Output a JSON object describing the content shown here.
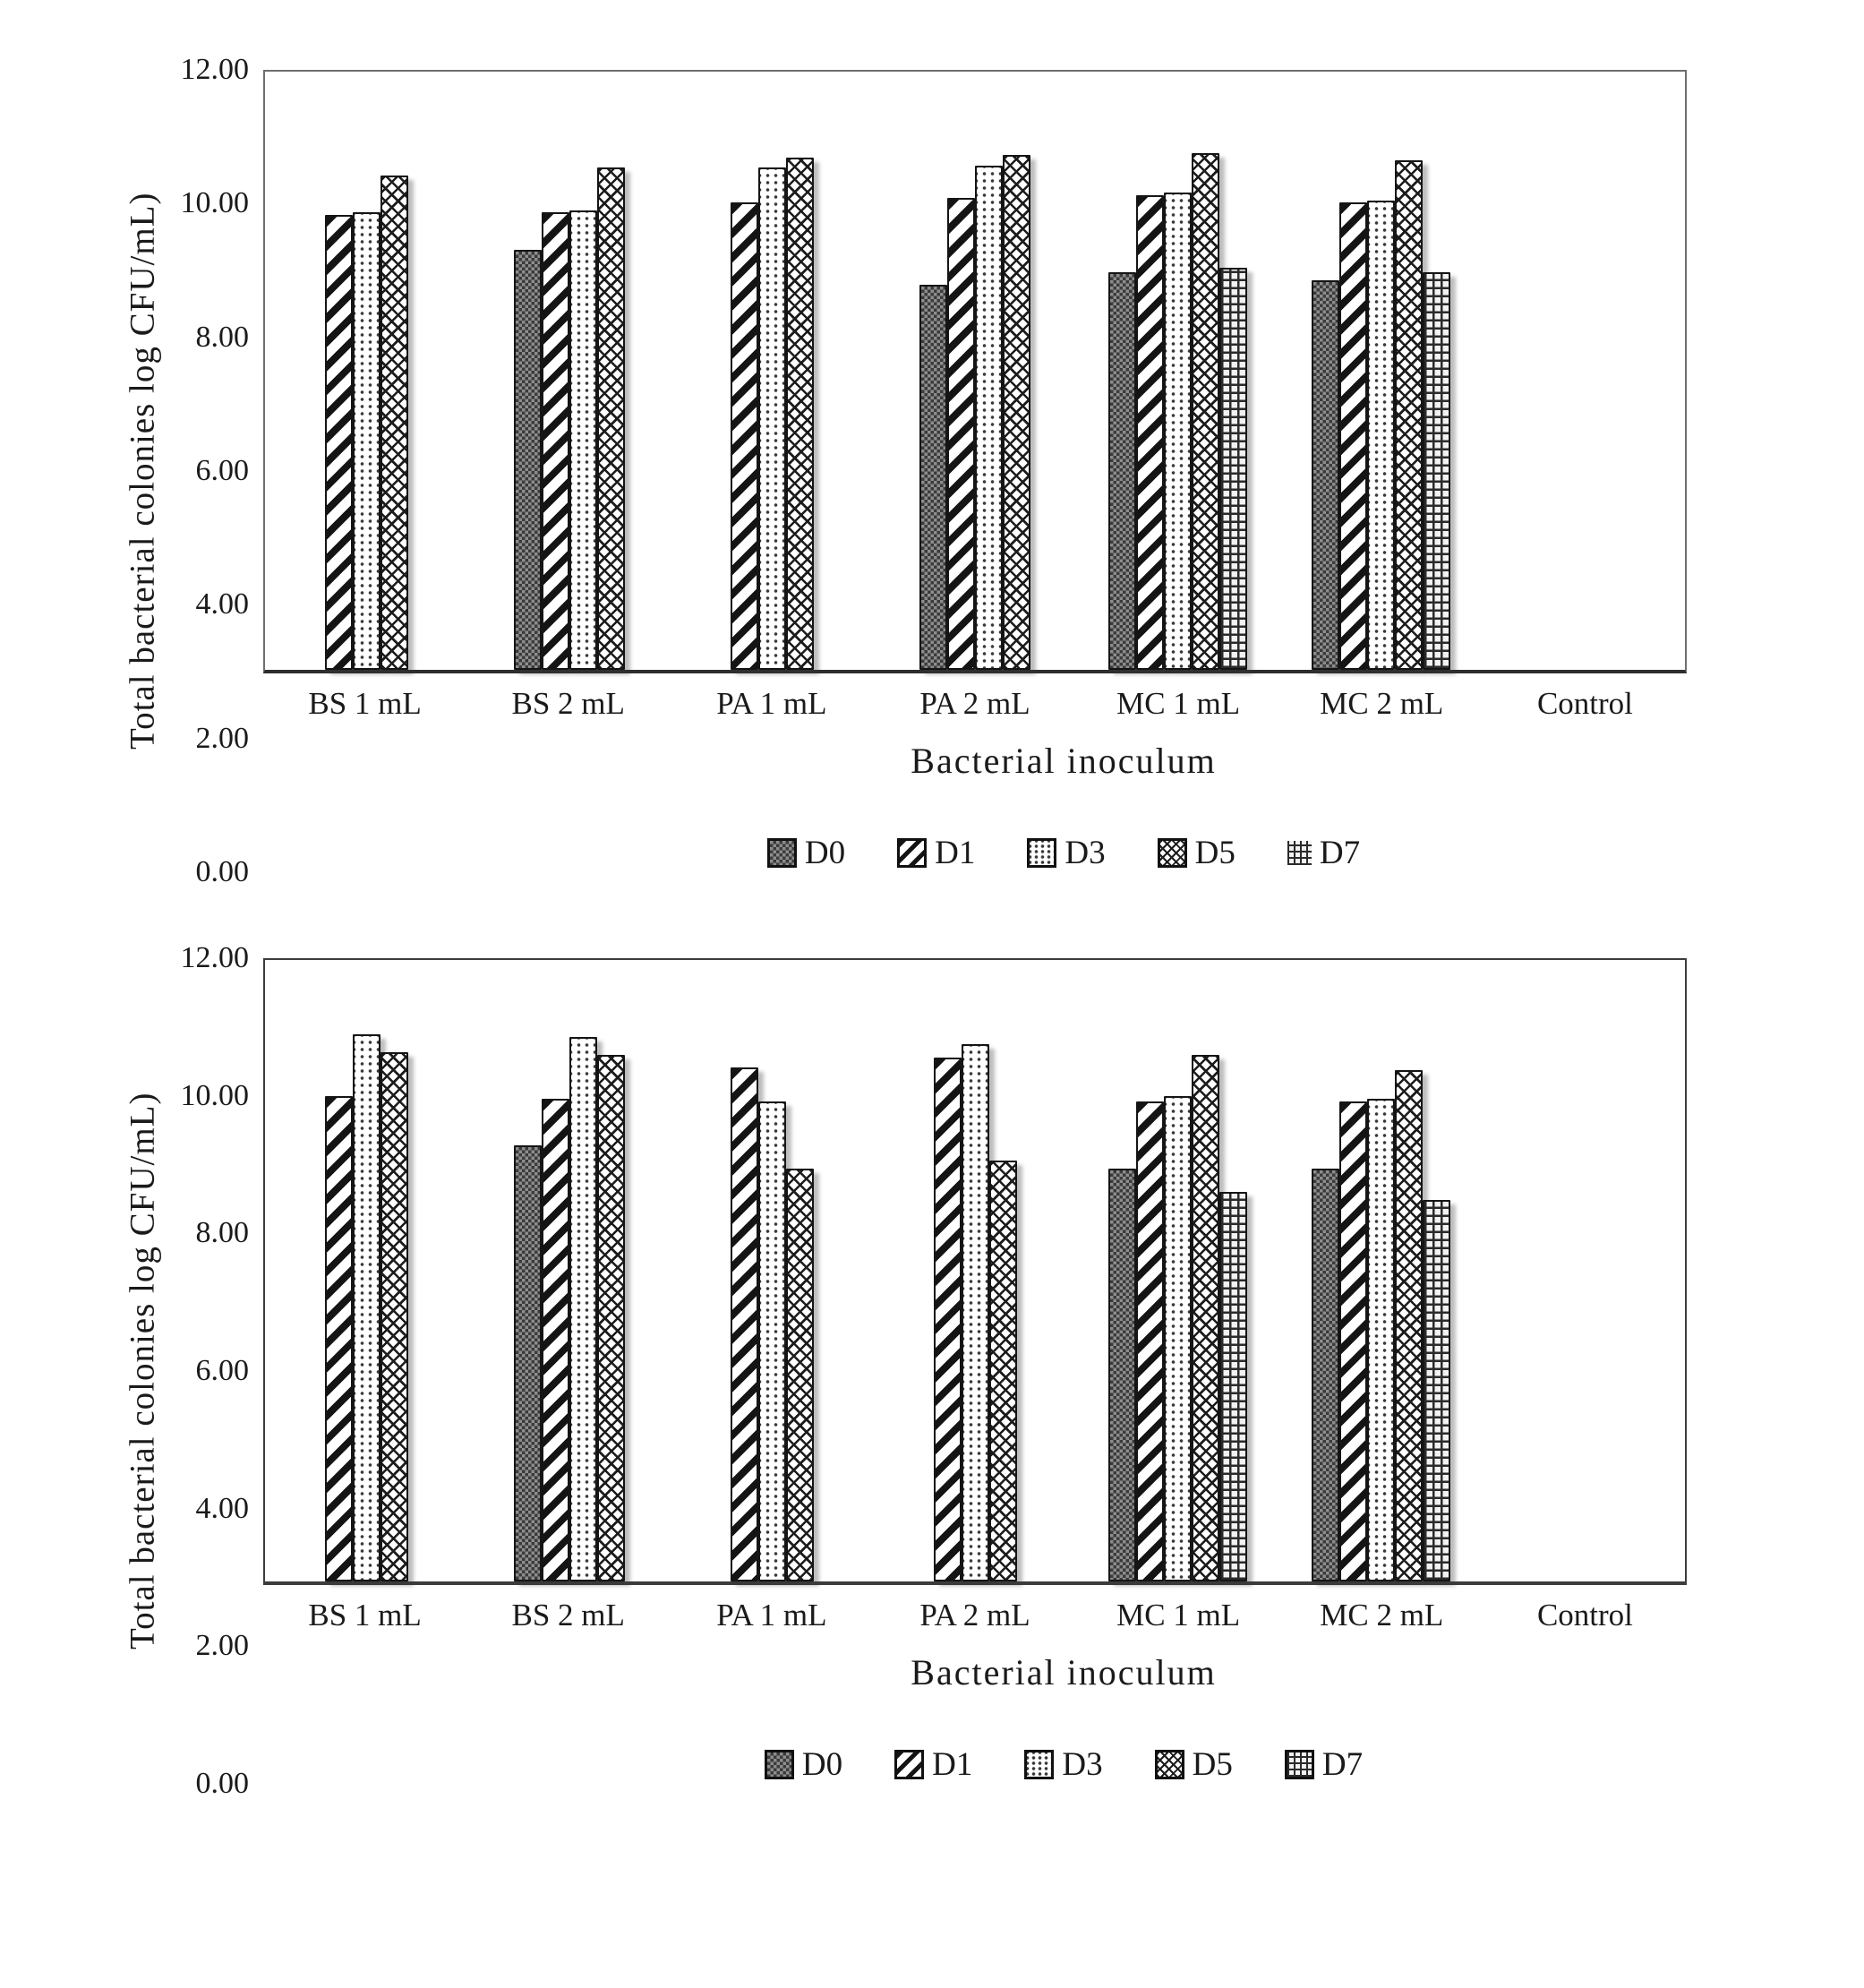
{
  "figure": {
    "background": "#ffffff",
    "ink_color": "#1a1a1a"
  },
  "chart_data": [
    {
      "type": "bar",
      "title": "",
      "ylabel": "Total bacterial colonies log CFU/mL)",
      "xlabel": "Bacterial inoculum",
      "ylim": [
        0,
        12
      ],
      "ymax": 12,
      "y_ticks": [
        "12.00",
        "10.00",
        "8.00",
        "6.00",
        "4.00",
        "2.00",
        "0.00"
      ],
      "grid": false,
      "legend_position": "bottom",
      "categories": [
        "BS 1 mL",
        "BS 2 mL",
        "PA 1 mL",
        "PA 2 mL",
        "MC 1 mL",
        "MC 2 mL",
        "Control"
      ],
      "series": [
        {
          "name": "D0",
          "pattern": "checker",
          "legend_box": true,
          "values": [
            null,
            8.35,
            null,
            7.65,
            7.9,
            7.75,
            null
          ]
        },
        {
          "name": "D1",
          "pattern": "diag",
          "legend_box": true,
          "values": [
            9.05,
            9.1,
            9.3,
            9.4,
            9.45,
            9.3,
            null
          ]
        },
        {
          "name": "D3",
          "pattern": "dots",
          "legend_box": true,
          "values": [
            9.1,
            9.15,
            10.0,
            10.05,
            9.5,
            9.35,
            null
          ]
        },
        {
          "name": "D5",
          "pattern": "cross",
          "legend_box": true,
          "values": [
            9.85,
            10.0,
            10.2,
            10.25,
            10.3,
            10.15,
            null
          ]
        },
        {
          "name": "D7",
          "pattern": "grid",
          "legend_box": false,
          "values": [
            null,
            null,
            null,
            null,
            8.0,
            7.9,
            null
          ]
        }
      ]
    },
    {
      "type": "bar",
      "title": "",
      "ylabel": "Total bacterial colonies log CFU/mL)",
      "xlabel": "Bacterial inoculum",
      "ylim": [
        0,
        12
      ],
      "ymax": 12,
      "y_ticks": [
        "12.00",
        "10.00",
        "8.00",
        "6.00",
        "4.00",
        "2.00",
        "0.00"
      ],
      "grid": false,
      "legend_position": "bottom",
      "categories": [
        "BS 1 mL",
        "BS 2 mL",
        "PA 1 mL",
        "PA 2 mL",
        "MC 1 mL",
        "MC 2 mL",
        "Control"
      ],
      "series": [
        {
          "name": "D0",
          "pattern": "checker",
          "legend_box": true,
          "values": [
            null,
            8.35,
            null,
            null,
            7.9,
            7.9,
            null
          ]
        },
        {
          "name": "D1",
          "pattern": "diag",
          "legend_box": true,
          "values": [
            9.3,
            9.25,
            9.85,
            10.05,
            9.2,
            9.2,
            null
          ]
        },
        {
          "name": "D3",
          "pattern": "dots",
          "legend_box": true,
          "values": [
            10.5,
            10.45,
            9.2,
            10.3,
            9.3,
            9.25,
            null
          ]
        },
        {
          "name": "D5",
          "pattern": "cross",
          "legend_box": true,
          "values": [
            10.15,
            10.1,
            7.9,
            8.05,
            10.1,
            9.8,
            null
          ]
        },
        {
          "name": "D7",
          "pattern": "grid",
          "legend_box": true,
          "values": [
            null,
            null,
            null,
            null,
            7.45,
            7.3,
            null
          ]
        }
      ]
    }
  ]
}
